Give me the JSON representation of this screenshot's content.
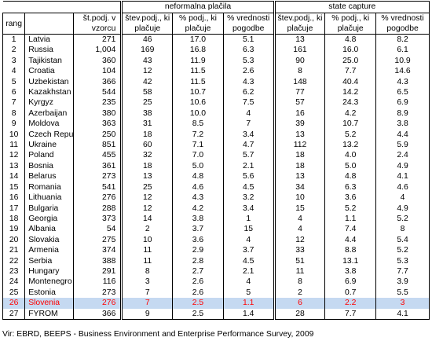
{
  "header": {
    "rang": "rang",
    "sample": [
      "št.podj. v",
      "vzorcu"
    ],
    "group_informal": "neformalna plačila",
    "group_capture": "state capture",
    "col_firms": [
      "štev.podj., ki",
      "plačuje"
    ],
    "col_pct_firms": [
      "% podj., ki",
      "plačuje"
    ],
    "col_pct_value": [
      "% vrednosti",
      "pogodbe"
    ]
  },
  "rows": [
    {
      "rank": "1",
      "country": "Latvia",
      "n": "271",
      "a": "46",
      "b": "17.0",
      "c": "5.1",
      "d": "13",
      "e": "4.8",
      "f": "8.2"
    },
    {
      "rank": "2",
      "country": "Russia",
      "n": "1,004",
      "a": "169",
      "b": "16.8",
      "c": "6.3",
      "d": "161",
      "e": "16.0",
      "f": "6.1"
    },
    {
      "rank": "3",
      "country": "Tajikistan",
      "n": "360",
      "a": "43",
      "b": "11.9",
      "c": "5.3",
      "d": "90",
      "e": "25.0",
      "f": "10.9"
    },
    {
      "rank": "4",
      "country": "Croatia",
      "n": "104",
      "a": "12",
      "b": "11.5",
      "c": "2.6",
      "d": "8",
      "e": "7.7",
      "f": "14.6"
    },
    {
      "rank": "5",
      "country": "Uzbekistan",
      "n": "366",
      "a": "42",
      "b": "11.5",
      "c": "4.3",
      "d": "148",
      "e": "40.4",
      "f": "4.3"
    },
    {
      "rank": "6",
      "country": "Kazakhstan",
      "n": "544",
      "a": "58",
      "b": "10.7",
      "c": "6.2",
      "d": "77",
      "e": "14.2",
      "f": "6.5"
    },
    {
      "rank": "7",
      "country": "Kyrgyz",
      "n": "235",
      "a": "25",
      "b": "10.6",
      "c": "7.5",
      "d": "57",
      "e": "24.3",
      "f": "6.9"
    },
    {
      "rank": "8",
      "country": "Azerbaijan",
      "n": "380",
      "a": "38",
      "b": "10.0",
      "c": "4",
      "d": "16",
      "e": "4.2",
      "f": "8.9"
    },
    {
      "rank": "9",
      "country": "Moldova",
      "n": "363",
      "a": "31",
      "b": "8.5",
      "c": "7",
      "d": "39",
      "e": "10.7",
      "f": "3.8"
    },
    {
      "rank": "10",
      "country": "Czech Repub",
      "n": "250",
      "a": "18",
      "b": "7.2",
      "c": "3.4",
      "d": "13",
      "e": "5.2",
      "f": "4.4"
    },
    {
      "rank": "11",
      "country": "Ukraine",
      "n": "851",
      "a": "60",
      "b": "7.1",
      "c": "4.7",
      "d": "112",
      "e": "13.2",
      "f": "5.9"
    },
    {
      "rank": "12",
      "country": "Poland",
      "n": "455",
      "a": "32",
      "b": "7.0",
      "c": "5.7",
      "d": "18",
      "e": "4.0",
      "f": "2.4"
    },
    {
      "rank": "13",
      "country": "Bosnia",
      "n": "361",
      "a": "18",
      "b": "5.0",
      "c": "2.1",
      "d": "18",
      "e": "5.0",
      "f": "4.9"
    },
    {
      "rank": "14",
      "country": "Belarus",
      "n": "273",
      "a": "13",
      "b": "4.8",
      "c": "5.6",
      "d": "13",
      "e": "4.8",
      "f": "4.1"
    },
    {
      "rank": "15",
      "country": "Romania",
      "n": "541",
      "a": "25",
      "b": "4.6",
      "c": "4.5",
      "d": "34",
      "e": "6.3",
      "f": "4.6"
    },
    {
      "rank": "16",
      "country": "Lithuania",
      "n": "276",
      "a": "12",
      "b": "4.3",
      "c": "3.2",
      "d": "10",
      "e": "3.6",
      "f": "4"
    },
    {
      "rank": "17",
      "country": "Bulgaria",
      "n": "288",
      "a": "12",
      "b": "4.2",
      "c": "3.4",
      "d": "15",
      "e": "5.2",
      "f": "4.9"
    },
    {
      "rank": "18",
      "country": "Georgia",
      "n": "373",
      "a": "14",
      "b": "3.8",
      "c": "1",
      "d": "4",
      "e": "1.1",
      "f": "5.2"
    },
    {
      "rank": "19",
      "country": "Albania",
      "n": "54",
      "a": "2",
      "b": "3.7",
      "c": "15",
      "d": "4",
      "e": "7.4",
      "f": "8"
    },
    {
      "rank": "20",
      "country": "Slovakia",
      "n": "275",
      "a": "10",
      "b": "3.6",
      "c": "4",
      "d": "12",
      "e": "4.4",
      "f": "5.4"
    },
    {
      "rank": "21",
      "country": "Armenia",
      "n": "374",
      "a": "11",
      "b": "2.9",
      "c": "3.7",
      "d": "33",
      "e": "8.8",
      "f": "5.2"
    },
    {
      "rank": "22",
      "country": "Serbia",
      "n": "388",
      "a": "11",
      "b": "2.8",
      "c": "4.5",
      "d": "51",
      "e": "13.1",
      "f": "5.3"
    },
    {
      "rank": "23",
      "country": "Hungary",
      "n": "291",
      "a": "8",
      "b": "2.7",
      "c": "2.1",
      "d": "11",
      "e": "3.8",
      "f": "7.7"
    },
    {
      "rank": "24",
      "country": "Montenegro",
      "n": "116",
      "a": "3",
      "b": "2.6",
      "c": "4",
      "d": "8",
      "e": "6.9",
      "f": "3.9"
    },
    {
      "rank": "25",
      "country": "Estonia",
      "n": "273",
      "a": "7",
      "b": "2.6",
      "c": "5",
      "d": "2",
      "e": "0.7",
      "f": "5.5"
    },
    {
      "rank": "26",
      "country": "Slovenia",
      "n": "276",
      "a": "7",
      "b": "2.5",
      "c": "1.1",
      "d": "6",
      "e": "2.2",
      "f": "3",
      "highlight": true
    },
    {
      "rank": "27",
      "country": "FYROM",
      "n": "366",
      "a": "9",
      "b": "2.5",
      "c": "1.4",
      "d": "28",
      "e": "7.7",
      "f": "4.1"
    }
  ],
  "highlight_color": "#c5d9f1",
  "highlight_text_color": "#ff0000",
  "source": "Vir: EBRD, BEEPS - Business Environment and Enterprise Performance Survey, 2009"
}
